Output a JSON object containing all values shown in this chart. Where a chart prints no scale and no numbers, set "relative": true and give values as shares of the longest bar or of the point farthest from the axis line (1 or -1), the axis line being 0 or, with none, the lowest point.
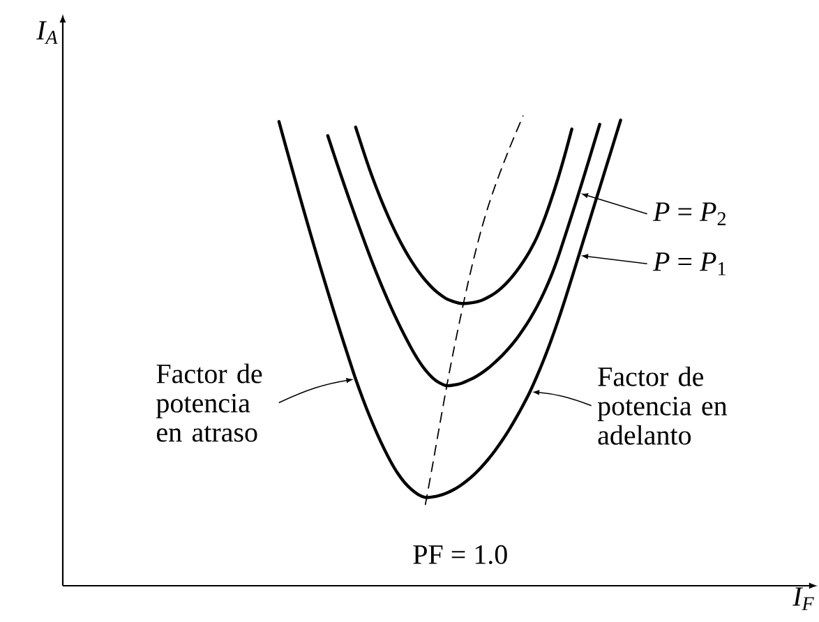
{
  "chart_data": {
    "type": "line",
    "relative": true,
    "line_style": "solid",
    "legend": "right",
    "categories": [
      null,
      null,
      null,
      null,
      null,
      null,
      null,
      null,
      null,
      null,
      null,
      null,
      null,
      null,
      null,
      null,
      null,
      null,
      null,
      null,
      null,
      null,
      null,
      null,
      null,
      null,
      null,
      null,
      null,
      null,
      null,
      null,
      null,
      null,
      null,
      null,
      null,
      null,
      null,
      null,
      null,
      null,
      null,
      null,
      null,
      null,
      null,
      null,
      null,
      null
    ],
    "series": [
      {
        "name": "*P* = *P*$_{1}$",
        "color": "#000000",
        "values": [
          0.988,
          0.934,
          0.881,
          0.828,
          0.776,
          0.725,
          0.675,
          0.626,
          0.578,
          0.531,
          0.485,
          0.44,
          0.399,
          0.361,
          0.326,
          0.294,
          0.265,
          0.24,
          0.22,
          0.205,
          0.194,
          0.188,
          0.189,
          0.192,
          0.197,
          0.204,
          0.213,
          0.224,
          0.237,
          0.252,
          0.269,
          0.288,
          0.309,
          0.332,
          0.357,
          0.384,
          0.413,
          0.446,
          0.482,
          0.521,
          0.563,
          0.608,
          0.655,
          0.703,
          0.751,
          0.799,
          0.847,
          0.895,
          0.943,
          0.991
        ]
      },
      {
        "name": "*P* = *P*$_{2}$",
        "color": "#000000",
        "values": [
          null,
          null,
          null,
          null,
          null,
          null,
          null,
          0.958,
          0.913,
          0.869,
          0.826,
          0.784,
          0.743,
          0.703,
          0.665,
          0.629,
          0.595,
          0.563,
          0.533,
          0.505,
          0.48,
          0.459,
          0.443,
          0.432,
          0.426,
          0.427,
          0.43,
          0.436,
          0.443,
          0.452,
          0.463,
          0.476,
          0.49,
          0.506,
          0.524,
          0.545,
          0.568,
          0.594,
          0.624,
          0.658,
          0.698,
          0.743,
          0.789,
          0.836,
          0.884,
          0.933,
          0.982,
          null,
          null,
          null
        ]
      },
      {
        "color": "#000000",
        "values": [
          null,
          null,
          null,
          null,
          null,
          null,
          null,
          null,
          null,
          null,
          null,
          0.976,
          0.93,
          0.886,
          0.846,
          0.809,
          0.775,
          0.744,
          0.716,
          0.691,
          0.669,
          0.65,
          0.634,
          0.621,
          0.611,
          0.605,
          0.601,
          0.601,
          0.603,
          0.607,
          0.614,
          0.623,
          0.635,
          0.65,
          0.668,
          0.689,
          0.713,
          0.742,
          0.778,
          0.82,
          0.866,
          0.917,
          0.972,
          null,
          null,
          null,
          null,
          null,
          null,
          null
        ]
      },
      {
        "name": "PF = 1.0",
        "color": "#000000",
        "line_style": "dashed",
        "values": [
          null,
          null,
          null,
          null,
          null,
          null,
          null,
          null,
          null,
          null,
          null,
          null,
          null,
          null,
          null,
          null,
          null,
          null,
          null,
          null,
          null,
          0.173,
          0.254,
          0.338,
          0.42,
          0.497,
          0.569,
          0.637,
          0.7,
          0.757,
          0.807,
          0.851,
          0.891,
          0.929,
          0.965,
          1.0,
          null,
          null,
          null,
          null,
          null,
          null,
          null,
          null,
          null,
          null,
          null,
          null,
          null,
          null
        ]
      }
    ],
    "annotations": [
      "Factor de potencia en atraso",
      "Factor de potencia en adelanto",
      "I$_{A}$",
      "I$_{F}$"
    ]
  }
}
